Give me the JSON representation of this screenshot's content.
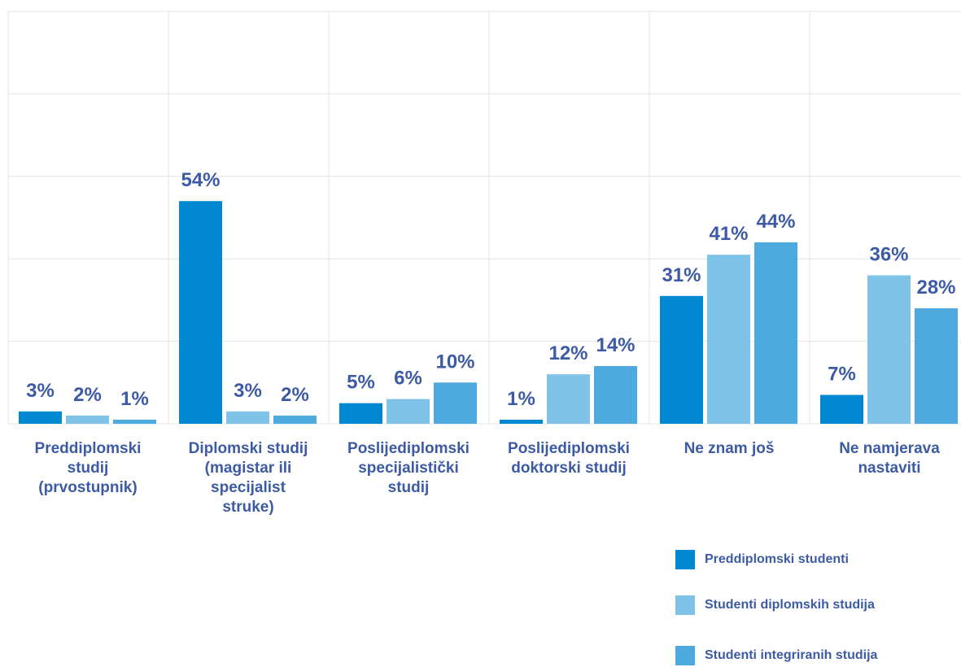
{
  "chart_data": {
    "type": "bar",
    "categories": [
      "Preddiplomski studij (prvostupnik)",
      "Diplomski studij (magistar ili specijalist struke)",
      "Poslijediplomski specijalistički studij",
      "Poslijediplomski doktorski studij",
      "Ne znam još",
      "Ne namjerava nastaviti"
    ],
    "category_lines": [
      [
        "Preddiplomski",
        "studij",
        "(prvostupnik)"
      ],
      [
        "Diplomski studij",
        "(magistar ili",
        "specijalist",
        "struke)"
      ],
      [
        "Poslijediplomski",
        "specijalistički",
        "studij"
      ],
      [
        "Poslijediplomski",
        "doktorski studij"
      ],
      [
        "Ne znam još"
      ],
      [
        "Ne namjerava",
        "nastaviti"
      ]
    ],
    "series": [
      {
        "name": "Preddiplomski studenti",
        "values": [
          3,
          54,
          5,
          1,
          31,
          7
        ],
        "color": "#0088d1"
      },
      {
        "name": "Studenti diplomskih studija",
        "values": [
          2,
          3,
          6,
          12,
          41,
          36
        ],
        "color": "#7fc4e8"
      },
      {
        "name": "Studenti integriranih studija",
        "values": [
          1,
          2,
          10,
          14,
          44,
          28
        ],
        "color": "#4ea9df"
      }
    ],
    "value_suffix": "%",
    "ylim": [
      0,
      100
    ],
    "grid": true,
    "legend_position": "bottom-right",
    "label_color": "#3d5ba4"
  }
}
